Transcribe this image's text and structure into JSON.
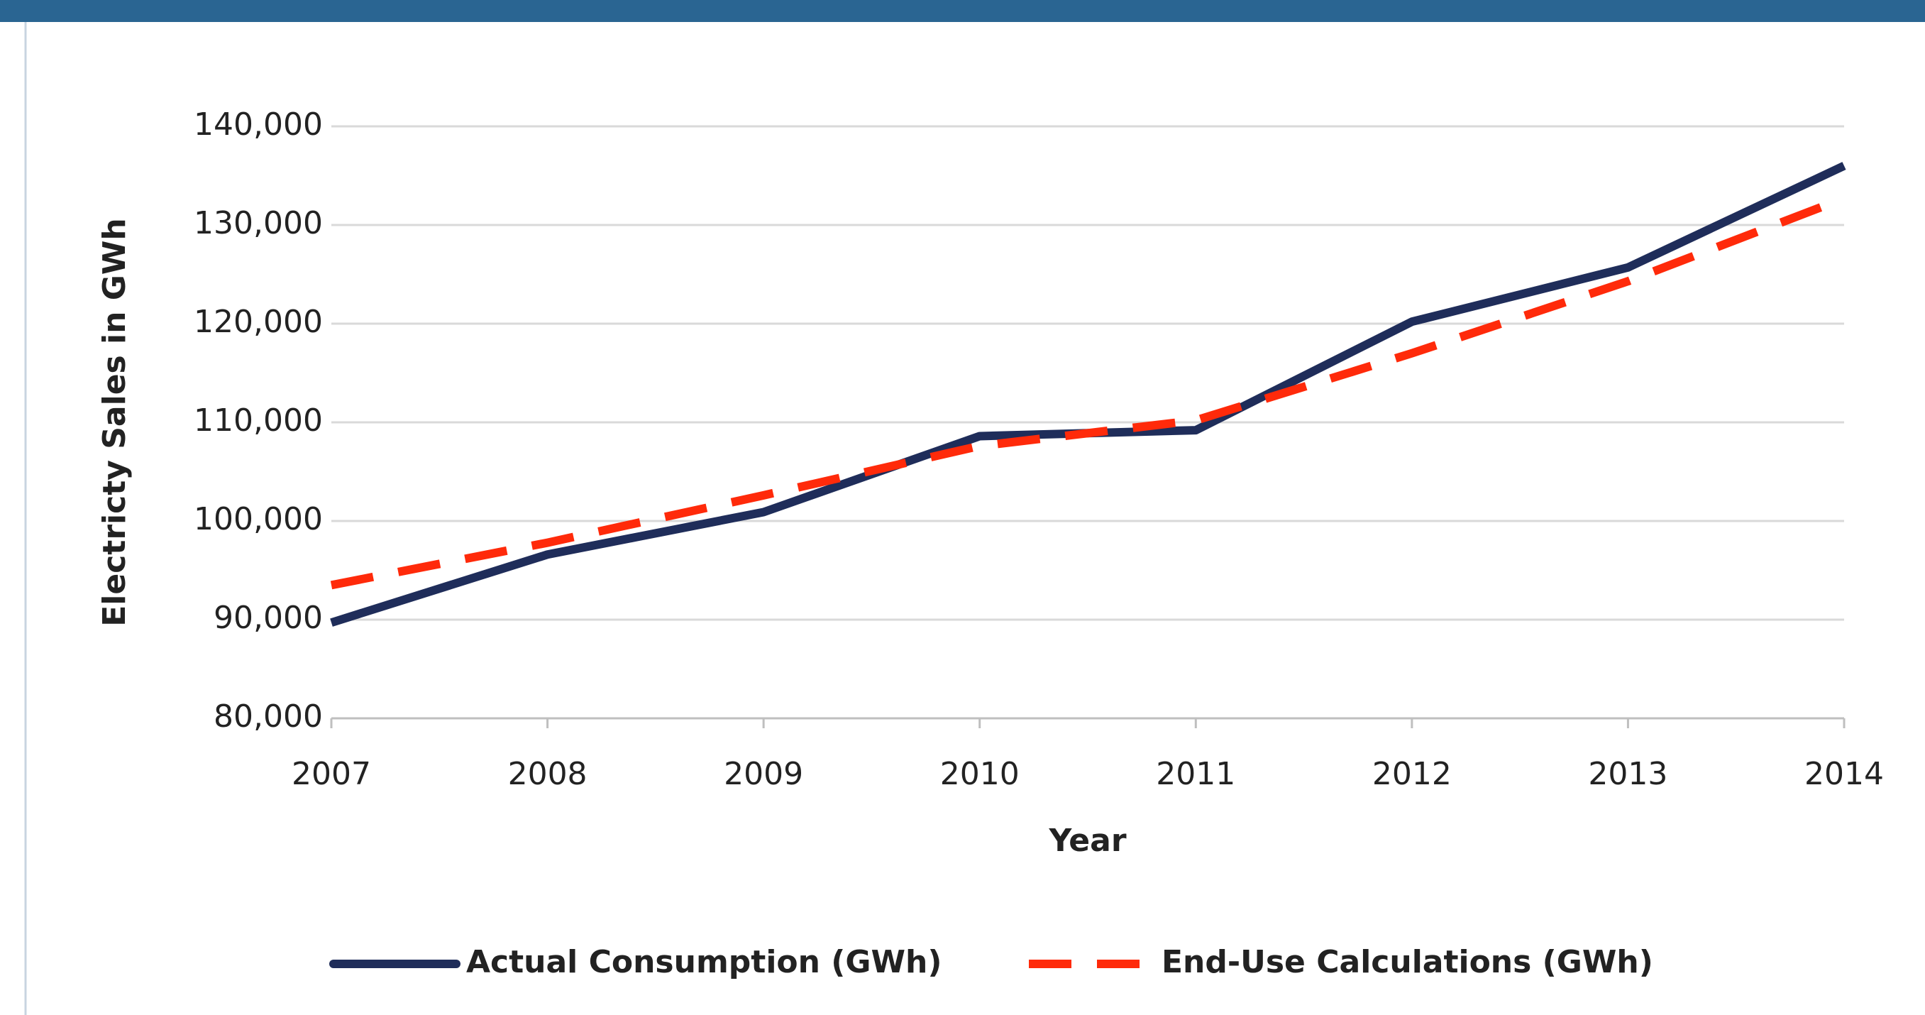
{
  "chart_data": {
    "type": "line",
    "x": [
      2007,
      2008,
      2009,
      2010,
      2011,
      2012,
      2013,
      2014
    ],
    "xlim": [
      2007,
      2014
    ],
    "xticks": [
      2007,
      2008,
      2009,
      2010,
      2011,
      2012,
      2013,
      2014
    ],
    "x_label": "Year",
    "y_label": "Electricty Sales in GWh",
    "ylim": [
      80000,
      140000
    ],
    "yticks": [
      {
        "value": 80000,
        "label": "80,000"
      },
      {
        "value": 90000,
        "label": "90,000"
      },
      {
        "value": 100000,
        "label": "100,000"
      },
      {
        "value": 110000,
        "label": "110,000"
      },
      {
        "value": 120000,
        "label": "120,000"
      },
      {
        "value": 130000,
        "label": "130,000"
      },
      {
        "value": 140000,
        "label": "140,000"
      }
    ],
    "grid": true,
    "legend": "bottom",
    "series": [
      {
        "name": "Actual Consumption (GWh)",
        "color": "#1f2d5a",
        "dashed": false,
        "values": [
          89700,
          96600,
          100900,
          108600,
          109200,
          120200,
          125700,
          136000
        ]
      },
      {
        "name": "End-Use Calculations (GWh)",
        "color": "#ff2a0a",
        "dashed": true,
        "values": [
          93500,
          97800,
          102600,
          107600,
          110200,
          117000,
          124300,
          132700
        ]
      }
    ]
  }
}
